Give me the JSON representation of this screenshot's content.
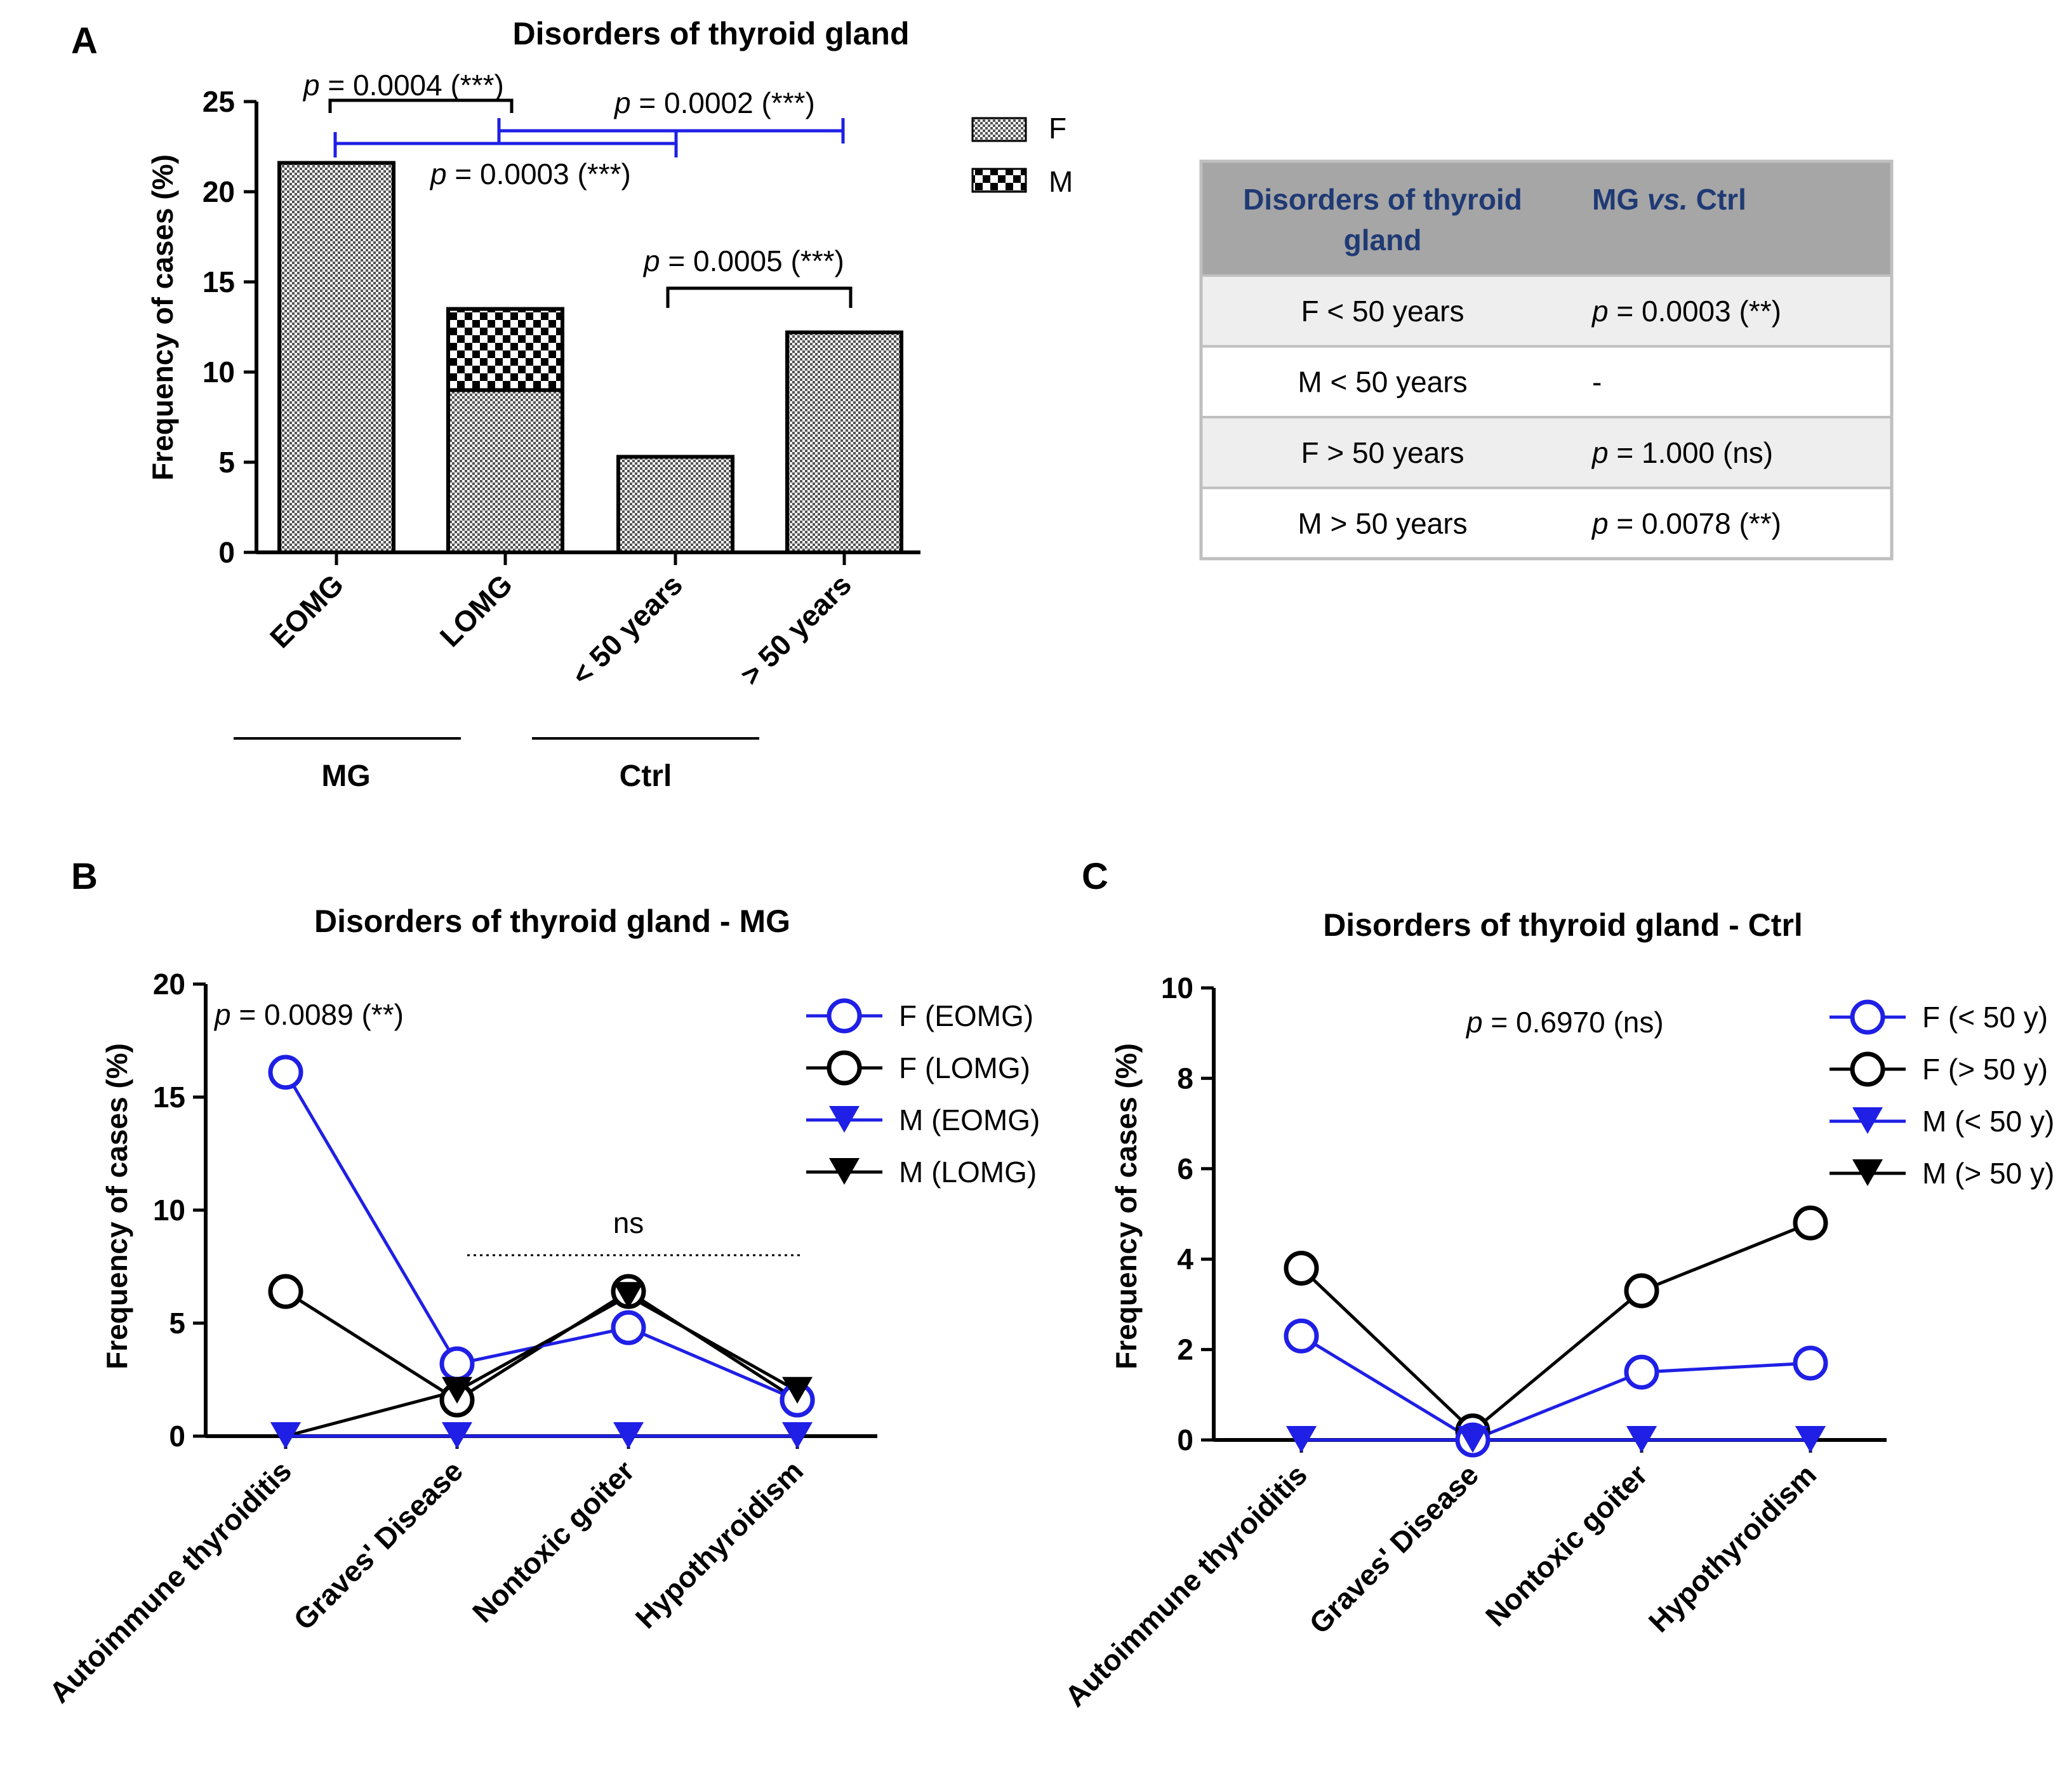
{
  "colors": {
    "blue": "#1f1fe6",
    "black": "#000000",
    "table_header_bg": "#a6a6a6",
    "table_header_text": "#1f3a74",
    "table_row_alt": "#eeeeee",
    "table_border": "#bfbfbf"
  },
  "panel_labels": [
    "A",
    "B",
    "C"
  ],
  "chart_data": [
    {
      "id": "A",
      "type": "bar",
      "stacked": true,
      "title": "Disorders of thyroid gland",
      "ylabel": "Frequency of cases (%)",
      "ylim": [
        0,
        25
      ],
      "yticks": [
        0,
        5,
        10,
        15,
        20,
        25
      ],
      "categories": [
        "EOMG",
        "LOMG",
        "< 50 years",
        "> 50 years"
      ],
      "groups": [
        {
          "label": "MG",
          "categories": [
            "EOMG",
            "LOMG"
          ]
        },
        {
          "label": "Ctrl",
          "categories": [
            "< 50 years",
            "> 50 years"
          ]
        }
      ],
      "series": [
        {
          "name": "F",
          "values": [
            21.6,
            9.0,
            5.3,
            12.2
          ]
        },
        {
          "name": "M",
          "values": [
            0,
            4.5,
            0,
            0
          ]
        }
      ],
      "legend": {
        "position": "top-right",
        "entries": [
          {
            "label": "F",
            "key": "F"
          },
          {
            "label": "M",
            "key": "M"
          }
        ]
      },
      "annotations": [
        {
          "p": "p",
          "text": " = 0.0004 (***)",
          "from": "EOMG",
          "to": "LOMG",
          "color": "black"
        },
        {
          "p": "p",
          "text": " = 0.0003 (***)",
          "from": "EOMG",
          "to": "< 50 years",
          "color": "blue"
        },
        {
          "p": "p",
          "text": " = 0.0002 (***)",
          "from": "LOMG",
          "to": "> 50 years",
          "color": "blue"
        },
        {
          "p": "p",
          "text": " = 0.0005 (***)",
          "from": "< 50 years",
          "to": "> 50 years",
          "color": "black"
        }
      ]
    },
    {
      "id": "B",
      "type": "line",
      "title": "Disorders of thyroid gland - MG",
      "ylabel": "Frequency of cases (%)",
      "ylim": [
        0,
        20
      ],
      "yticks": [
        0,
        5,
        10,
        15,
        20
      ],
      "categories": [
        "Autoimmune thyroiditis",
        "Graves' Disease",
        "Nontoxic goiter",
        "Hypothyroidism"
      ],
      "series": [
        {
          "name": "F (EOMG)",
          "values": [
            16.1,
            3.2,
            4.8,
            1.6
          ],
          "color": "blue",
          "marker": "circle"
        },
        {
          "name": "F (LOMG)",
          "values": [
            6.4,
            1.6,
            6.4,
            1.6
          ],
          "color": "black",
          "marker": "circle"
        },
        {
          "name": "M (EOMG)",
          "values": [
            0,
            0,
            0,
            0
          ],
          "color": "blue",
          "marker": "triangle-down"
        },
        {
          "name": "M (LOMG)",
          "values": [
            0,
            2.0,
            6.2,
            2.0
          ],
          "color": "black",
          "marker": "triangle-down"
        }
      ],
      "legend": {
        "position": "top-right"
      },
      "annotations": {
        "p": "p",
        "pvalue": " = 0.0089 (**)",
        "ns": "ns"
      }
    },
    {
      "id": "C",
      "type": "line",
      "title": "Disorders of thyroid gland - Ctrl",
      "ylabel": "Frequency of cases (%)",
      "ylim": [
        0,
        10
      ],
      "yticks": [
        0,
        2,
        4,
        6,
        8,
        10
      ],
      "categories": [
        "Autoimmune thyroiditis",
        "Graves' Disease",
        "Nontoxic goiter",
        "Hypothyroidism"
      ],
      "series": [
        {
          "name": "F (< 50 y)",
          "values": [
            2.3,
            0,
            1.5,
            1.7
          ],
          "color": "blue",
          "marker": "circle"
        },
        {
          "name": "F (> 50 y)",
          "values": [
            3.8,
            0.2,
            3.3,
            4.8
          ],
          "color": "black",
          "marker": "circle"
        },
        {
          "name": "M (< 50 y)",
          "values": [
            0,
            0,
            0,
            0
          ],
          "color": "blue",
          "marker": "triangle-down"
        },
        {
          "name": "M (> 50 y)",
          "values": [
            0,
            0,
            0,
            0
          ],
          "color": "black",
          "marker": "triangle-down"
        }
      ],
      "legend": {
        "position": "top-right"
      },
      "annotations": {
        "p": "p",
        "pvalue": " = 0.6970 (ns)"
      }
    }
  ],
  "table": {
    "headers": [
      {
        "line1": "Disorders of thyroid",
        "line2": "gland"
      },
      {
        "pre": "MG ",
        "em": "vs.",
        "post": " Ctrl"
      }
    ],
    "rows": [
      {
        "group": "F < 50 years",
        "p": "p",
        "value": " = 0.0003 (**)"
      },
      {
        "group": "M < 50 years",
        "p": "",
        "value": "-"
      },
      {
        "group": "F > 50 years",
        "p": "p",
        "value": " = 1.000 (ns)"
      },
      {
        "group": "M > 50 years",
        "p": "p",
        "value": " = 0.0078 (**)"
      }
    ]
  }
}
